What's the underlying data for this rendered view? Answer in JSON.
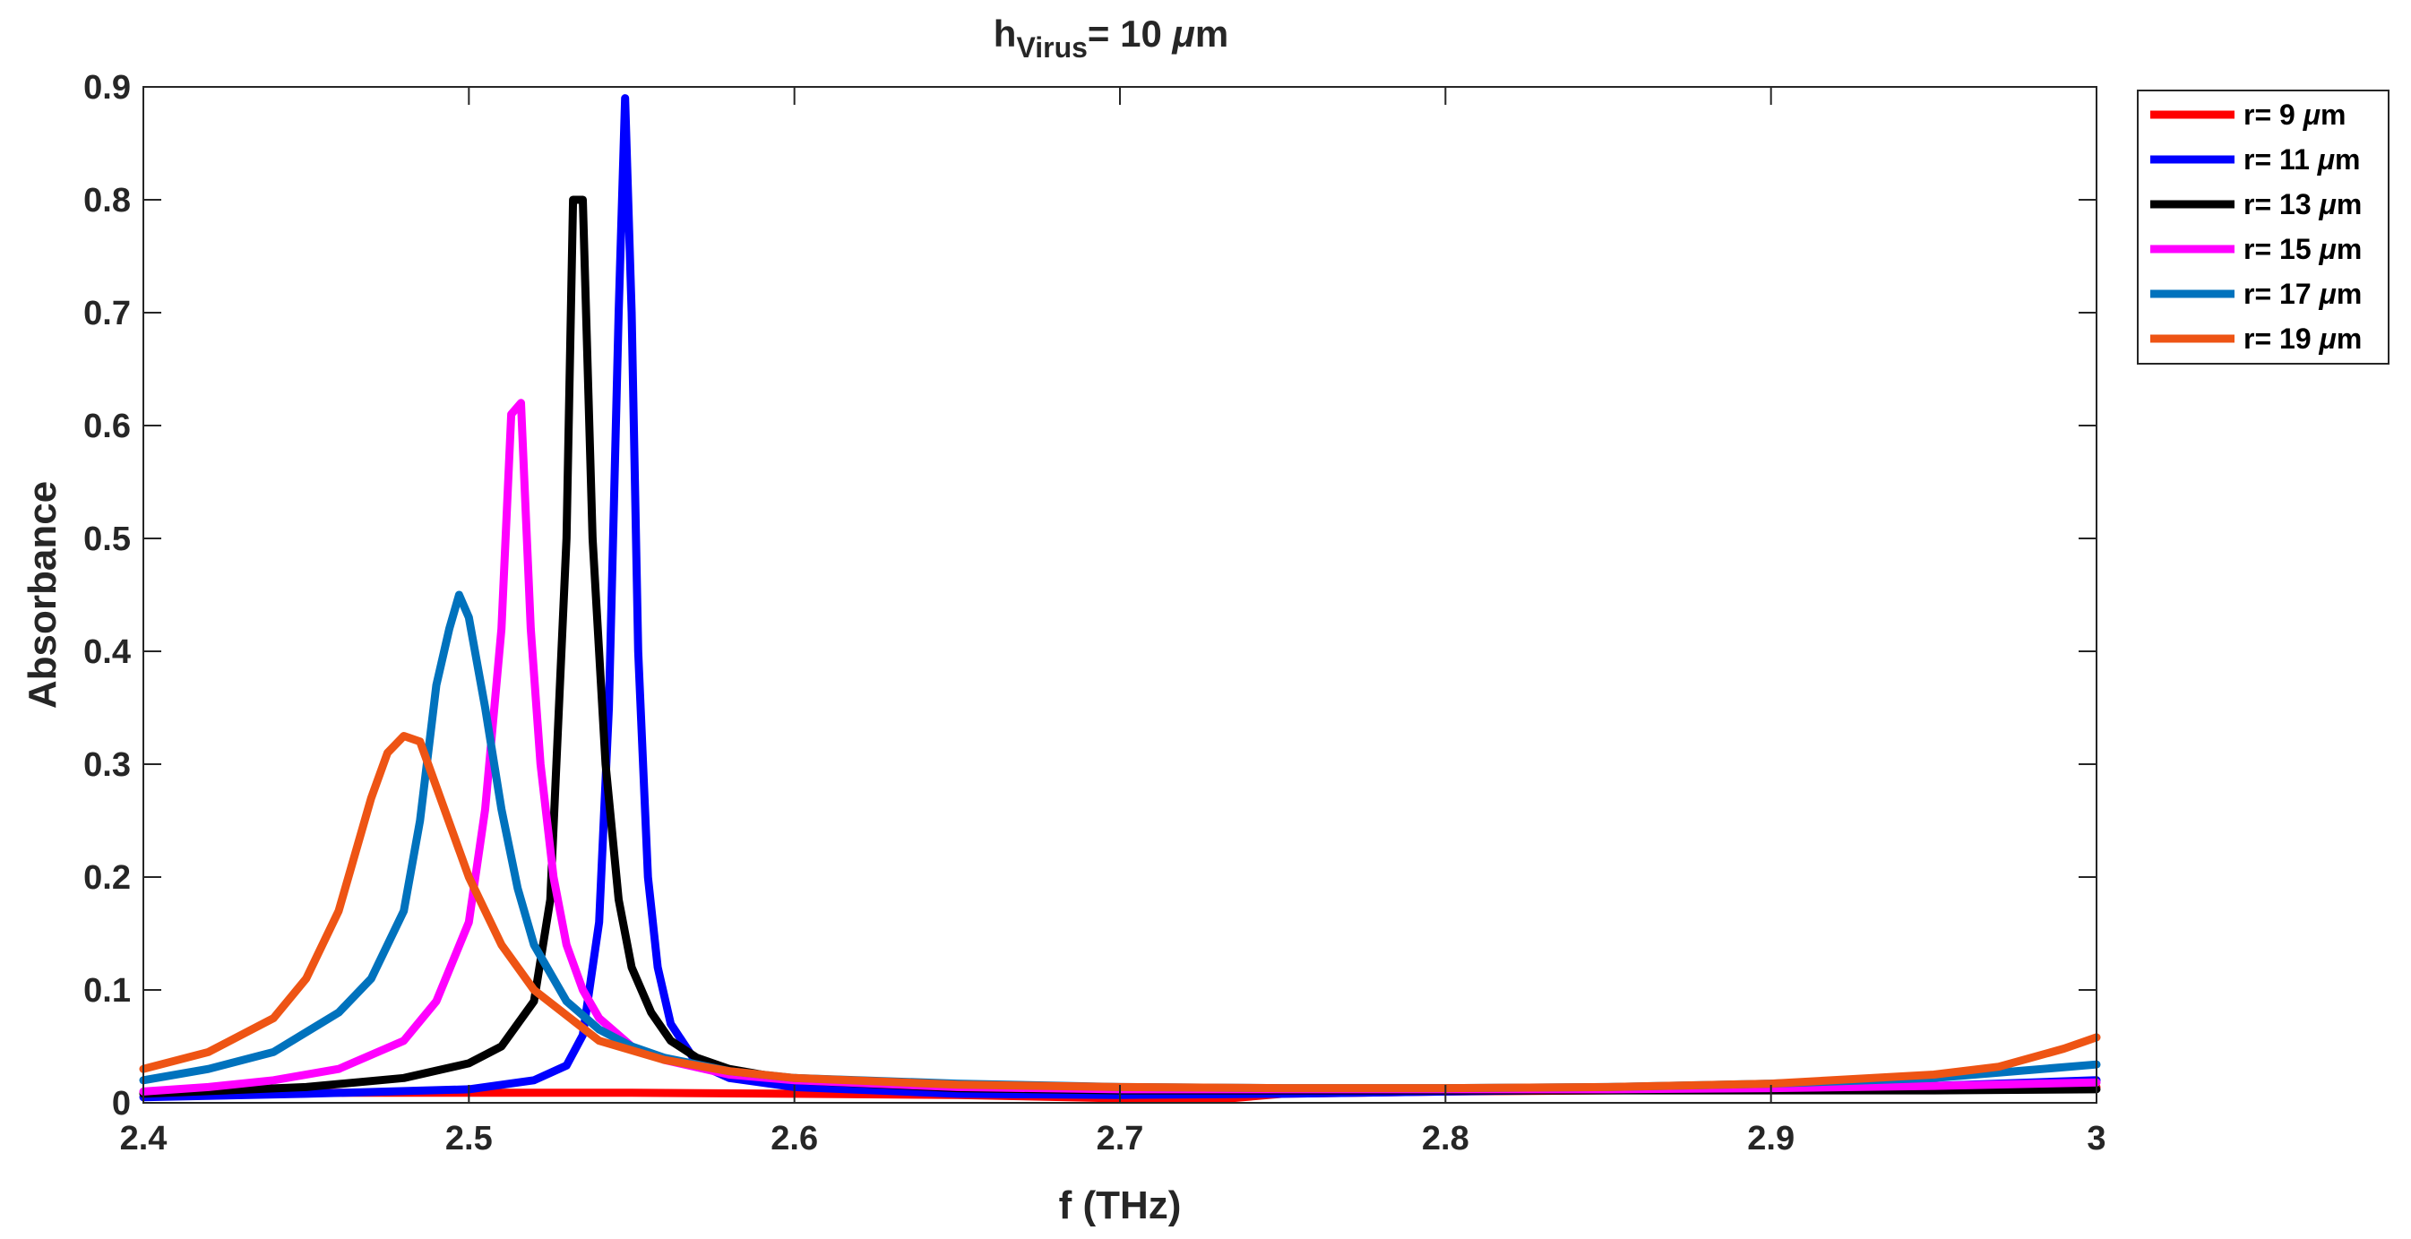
{
  "chart_data": {
    "type": "line",
    "title": {
      "main": "h",
      "sub": "Virus",
      "rest": "= 10 ",
      "mu": "μ",
      "unit": "m"
    },
    "xlabel": "f (THz)",
    "ylabel": "Absorbance",
    "xlim": [
      2.4,
      3.0
    ],
    "ylim": [
      0,
      0.9
    ],
    "xticks": [
      2.4,
      2.5,
      2.6,
      2.7,
      2.8,
      2.9,
      3.0
    ],
    "xtick_labels": [
      "2.4",
      "2.5",
      "2.6",
      "2.7",
      "2.8",
      "2.9",
      "3"
    ],
    "yticks": [
      0,
      0.1,
      0.2,
      0.3,
      0.4,
      0.5,
      0.6,
      0.7,
      0.8,
      0.9
    ],
    "ytick_labels": [
      "0",
      "0.1",
      "0.2",
      "0.3",
      "0.4",
      "0.5",
      "0.6",
      "0.7",
      "0.8",
      "0.9"
    ],
    "grid": false,
    "legend_position": "outside-top-right",
    "series": [
      {
        "name": "r= 9 μm",
        "label_prefix": "r= 9 ",
        "label_mu": "μ",
        "label_unit": "m",
        "color": "#FF0000",
        "x": [
          2.4,
          2.45,
          2.5,
          2.55,
          2.6,
          2.65,
          2.7,
          2.73,
          2.75,
          2.8,
          2.85,
          2.9,
          2.95,
          3.0
        ],
        "y": [
          0.009,
          0.009,
          0.009,
          0.009,
          0.008,
          0.007,
          0.004,
          0.003,
          0.008,
          0.01,
          0.011,
          0.012,
          0.013,
          0.014
        ]
      },
      {
        "name": "r= 11 μm",
        "label_prefix": "r= 11 ",
        "label_mu": "μ",
        "label_unit": "m",
        "color": "#0000FF",
        "x": [
          2.4,
          2.45,
          2.5,
          2.52,
          2.53,
          2.535,
          2.54,
          2.543,
          2.546,
          2.548,
          2.55,
          2.552,
          2.555,
          2.558,
          2.562,
          2.57,
          2.58,
          2.6,
          2.65,
          2.7,
          2.75,
          2.8,
          2.85,
          2.9,
          2.95,
          3.0
        ],
        "y": [
          0.005,
          0.008,
          0.012,
          0.02,
          0.033,
          0.06,
          0.16,
          0.35,
          0.7,
          0.89,
          0.7,
          0.4,
          0.2,
          0.12,
          0.07,
          0.035,
          0.022,
          0.014,
          0.008,
          0.007,
          0.008,
          0.01,
          0.012,
          0.013,
          0.015,
          0.02
        ]
      },
      {
        "name": "r= 13 μm",
        "label_prefix": "r= 13 ",
        "label_mu": "μ",
        "label_unit": "m",
        "color": "#000000",
        "x": [
          2.4,
          2.45,
          2.48,
          2.5,
          2.51,
          2.52,
          2.525,
          2.53,
          2.532,
          2.535,
          2.538,
          2.542,
          2.546,
          2.55,
          2.556,
          2.562,
          2.57,
          2.58,
          2.6,
          2.65,
          2.7,
          2.75,
          2.8,
          2.85,
          2.9,
          2.95,
          3.0
        ],
        "y": [
          0.008,
          0.014,
          0.022,
          0.035,
          0.05,
          0.09,
          0.18,
          0.5,
          0.8,
          0.8,
          0.5,
          0.3,
          0.18,
          0.12,
          0.08,
          0.055,
          0.04,
          0.03,
          0.02,
          0.013,
          0.011,
          0.011,
          0.011,
          0.011,
          0.011,
          0.011,
          0.012
        ]
      },
      {
        "name": "r= 15 μm",
        "label_prefix": "r= 15 ",
        "label_mu": "μ",
        "label_unit": "m",
        "color": "#FF00FF",
        "x": [
          2.4,
          2.42,
          2.44,
          2.46,
          2.48,
          2.49,
          2.5,
          2.505,
          2.51,
          2.513,
          2.516,
          2.519,
          2.522,
          2.526,
          2.53,
          2.535,
          2.54,
          2.55,
          2.56,
          2.58,
          2.6,
          2.65,
          2.7,
          2.75,
          2.8,
          2.85,
          2.9,
          2.95,
          3.0
        ],
        "y": [
          0.01,
          0.014,
          0.02,
          0.03,
          0.055,
          0.09,
          0.16,
          0.26,
          0.42,
          0.61,
          0.62,
          0.42,
          0.3,
          0.2,
          0.14,
          0.1,
          0.075,
          0.05,
          0.038,
          0.025,
          0.02,
          0.014,
          0.012,
          0.012,
          0.012,
          0.012,
          0.013,
          0.015,
          0.018
        ]
      },
      {
        "name": "r= 17 μm",
        "label_prefix": "r= 17 ",
        "label_mu": "μ",
        "label_unit": "m",
        "color": "#0072BD",
        "x": [
          2.4,
          2.42,
          2.44,
          2.46,
          2.47,
          2.48,
          2.485,
          2.49,
          2.494,
          2.497,
          2.5,
          2.505,
          2.51,
          2.515,
          2.52,
          2.53,
          2.54,
          2.55,
          2.56,
          2.58,
          2.6,
          2.65,
          2.7,
          2.75,
          2.8,
          2.85,
          2.9,
          2.95,
          3.0
        ],
        "y": [
          0.02,
          0.03,
          0.045,
          0.08,
          0.11,
          0.17,
          0.25,
          0.37,
          0.42,
          0.45,
          0.43,
          0.35,
          0.26,
          0.19,
          0.14,
          0.09,
          0.065,
          0.05,
          0.04,
          0.028,
          0.022,
          0.017,
          0.014,
          0.013,
          0.013,
          0.014,
          0.017,
          0.022,
          0.034
        ]
      },
      {
        "name": "r= 19 μm",
        "label_prefix": "r= 19 ",
        "label_mu": "μ",
        "label_unit": "m",
        "color": "#EE5414",
        "x": [
          2.4,
          2.42,
          2.44,
          2.45,
          2.46,
          2.47,
          2.475,
          2.48,
          2.485,
          2.49,
          2.5,
          2.51,
          2.52,
          2.54,
          2.56,
          2.58,
          2.6,
          2.65,
          2.7,
          2.75,
          2.8,
          2.85,
          2.9,
          2.95,
          2.97,
          2.99,
          3.0
        ],
        "y": [
          0.03,
          0.045,
          0.075,
          0.11,
          0.17,
          0.27,
          0.31,
          0.325,
          0.32,
          0.28,
          0.2,
          0.14,
          0.1,
          0.055,
          0.038,
          0.028,
          0.022,
          0.016,
          0.014,
          0.013,
          0.013,
          0.014,
          0.017,
          0.025,
          0.032,
          0.048,
          0.058
        ]
      }
    ]
  }
}
